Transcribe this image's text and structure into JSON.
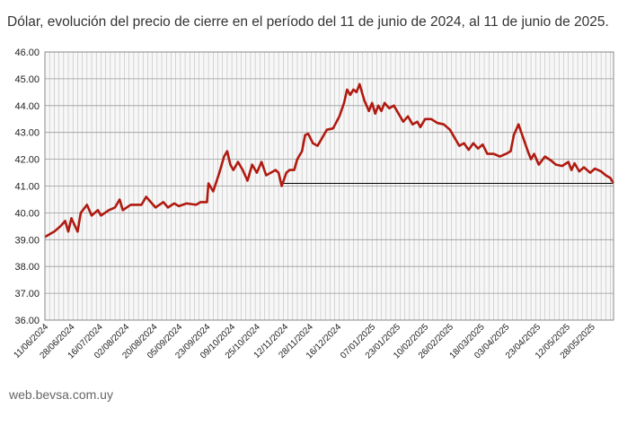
{
  "title": "Dólar, evolución del precio de cierre en el período del 11 de junio de 2024, al 11 de junio de 2025.",
  "footer": "web.bevsa.com.uy",
  "colors": {
    "line": "#b01a10",
    "grid": "#bdbdbd",
    "reference": "#000000",
    "plot_bg": "#f7f7f7"
  },
  "chart_data": {
    "type": "line",
    "title": "Dólar, evolución del precio de cierre en el período del 11 de junio de 2024, al 11 de junio de 2025.",
    "xlabel": "",
    "ylabel": "",
    "ylim": [
      36.0,
      46.0
    ],
    "yticks": [
      "46.00",
      "45.00",
      "44.00",
      "43.00",
      "42.00",
      "41.00",
      "40.00",
      "39.00",
      "38.00",
      "37.00",
      "36.00"
    ],
    "xlim": [
      "2024-06-11",
      "2025-06-11"
    ],
    "xticks": [
      "11/06/2024",
      "28/06/2024",
      "16/07/2024",
      "02/08/2024",
      "20/08/2024",
      "05/09/2024",
      "23/09/2024",
      "09/10/2024",
      "25/10/2024",
      "12/11/2024",
      "28/11/2024",
      "16/12/2024",
      "07/01/2025",
      "23/01/2025",
      "10/02/2025",
      "26/02/2025",
      "18/03/2025",
      "03/04/2025",
      "23/04/2025",
      "12/05/2025",
      "28/05/2025"
    ],
    "grid": true,
    "series": [
      {
        "values": [
          [
            "2024-06-11",
            39.1
          ],
          [
            "2024-06-17",
            39.3
          ],
          [
            "2024-06-21",
            39.5
          ],
          [
            "2024-06-24",
            39.7
          ],
          [
            "2024-06-26",
            39.3
          ],
          [
            "2024-06-28",
            39.8
          ],
          [
            "2024-07-02",
            39.3
          ],
          [
            "2024-07-04",
            40.0
          ],
          [
            "2024-07-08",
            40.3
          ],
          [
            "2024-07-11",
            39.9
          ],
          [
            "2024-07-15",
            40.1
          ],
          [
            "2024-07-17",
            39.9
          ],
          [
            "2024-07-22",
            40.1
          ],
          [
            "2024-07-26",
            40.2
          ],
          [
            "2024-07-29",
            40.5
          ],
          [
            "2024-07-31",
            40.1
          ],
          [
            "2024-08-05",
            40.3
          ],
          [
            "2024-08-12",
            40.3
          ],
          [
            "2024-08-15",
            40.6
          ],
          [
            "2024-08-21",
            40.2
          ],
          [
            "2024-08-26",
            40.4
          ],
          [
            "2024-08-29",
            40.2
          ],
          [
            "2024-09-02",
            40.35
          ],
          [
            "2024-09-05",
            40.25
          ],
          [
            "2024-09-10",
            40.35
          ],
          [
            "2024-09-16",
            40.3
          ],
          [
            "2024-09-19",
            40.4
          ],
          [
            "2024-09-23",
            40.4
          ],
          [
            "2024-09-24",
            41.1
          ],
          [
            "2024-09-27",
            40.8
          ],
          [
            "2024-10-01",
            41.5
          ],
          [
            "2024-10-04",
            42.1
          ],
          [
            "2024-10-06",
            42.3
          ],
          [
            "2024-10-08",
            41.8
          ],
          [
            "2024-10-10",
            41.6
          ],
          [
            "2024-10-13",
            41.9
          ],
          [
            "2024-10-16",
            41.6
          ],
          [
            "2024-10-19",
            41.2
          ],
          [
            "2024-10-22",
            41.8
          ],
          [
            "2024-10-25",
            41.5
          ],
          [
            "2024-10-28",
            41.9
          ],
          [
            "2024-10-31",
            41.4
          ],
          [
            "2024-11-03",
            41.5
          ],
          [
            "2024-11-06",
            41.6
          ],
          [
            "2024-11-08",
            41.5
          ],
          [
            "2024-11-10",
            41.0
          ],
          [
            "2024-11-13",
            41.5
          ],
          [
            "2024-11-15",
            41.6
          ],
          [
            "2024-11-18",
            41.6
          ],
          [
            "2024-11-20",
            42.0
          ],
          [
            "2024-11-23",
            42.3
          ],
          [
            "2024-11-25",
            42.9
          ],
          [
            "2024-11-27",
            42.95
          ],
          [
            "2024-11-30",
            42.6
          ],
          [
            "2024-12-03",
            42.5
          ],
          [
            "2024-12-06",
            42.8
          ],
          [
            "2024-12-09",
            43.1
          ],
          [
            "2024-12-13",
            43.15
          ],
          [
            "2024-12-17",
            43.6
          ],
          [
            "2024-12-20",
            44.1
          ],
          [
            "2024-12-22",
            44.6
          ],
          [
            "2024-12-24",
            44.4
          ],
          [
            "2024-12-26",
            44.6
          ],
          [
            "2024-12-28",
            44.5
          ],
          [
            "2024-12-30",
            44.8
          ],
          [
            "2025-01-02",
            44.2
          ],
          [
            "2025-01-05",
            43.8
          ],
          [
            "2025-01-07",
            44.1
          ],
          [
            "2025-01-09",
            43.7
          ],
          [
            "2025-01-11",
            44.0
          ],
          [
            "2025-01-13",
            43.8
          ],
          [
            "2025-01-15",
            44.1
          ],
          [
            "2025-01-18",
            43.9
          ],
          [
            "2025-01-21",
            44.0
          ],
          [
            "2025-01-24",
            43.7
          ],
          [
            "2025-01-27",
            43.4
          ],
          [
            "2025-01-30",
            43.6
          ],
          [
            "2025-02-02",
            43.3
          ],
          [
            "2025-02-05",
            43.4
          ],
          [
            "2025-02-07",
            43.2
          ],
          [
            "2025-02-10",
            43.5
          ],
          [
            "2025-02-14",
            43.5
          ],
          [
            "2025-02-18",
            43.35
          ],
          [
            "2025-02-22",
            43.3
          ],
          [
            "2025-02-26",
            43.1
          ],
          [
            "2025-03-01",
            42.8
          ],
          [
            "2025-03-04",
            42.5
          ],
          [
            "2025-03-07",
            42.6
          ],
          [
            "2025-03-10",
            42.35
          ],
          [
            "2025-03-13",
            42.6
          ],
          [
            "2025-03-16",
            42.4
          ],
          [
            "2025-03-19",
            42.55
          ],
          [
            "2025-03-22",
            42.2
          ],
          [
            "2025-03-26",
            42.2
          ],
          [
            "2025-03-30",
            42.1
          ],
          [
            "2025-04-03",
            42.2
          ],
          [
            "2025-04-06",
            42.3
          ],
          [
            "2025-04-08",
            42.9
          ],
          [
            "2025-04-11",
            43.3
          ],
          [
            "2025-04-14",
            42.8
          ],
          [
            "2025-04-17",
            42.3
          ],
          [
            "2025-04-19",
            42.0
          ],
          [
            "2025-04-21",
            42.2
          ],
          [
            "2025-04-24",
            41.8
          ],
          [
            "2025-04-28",
            42.1
          ],
          [
            "2025-05-02",
            41.95
          ],
          [
            "2025-05-05",
            41.8
          ],
          [
            "2025-05-09",
            41.75
          ],
          [
            "2025-05-13",
            41.9
          ],
          [
            "2025-05-15",
            41.6
          ],
          [
            "2025-05-17",
            41.85
          ],
          [
            "2025-05-20",
            41.55
          ],
          [
            "2025-05-23",
            41.7
          ],
          [
            "2025-05-27",
            41.5
          ],
          [
            "2025-05-30",
            41.65
          ],
          [
            "2025-06-03",
            41.55
          ],
          [
            "2025-06-06",
            41.4
          ],
          [
            "2025-06-09",
            41.3
          ],
          [
            "2025-06-11",
            41.1
          ]
        ]
      }
    ],
    "reference_line": {
      "y": 41.1,
      "from": "2024-11-10",
      "to": "2025-06-11"
    }
  }
}
